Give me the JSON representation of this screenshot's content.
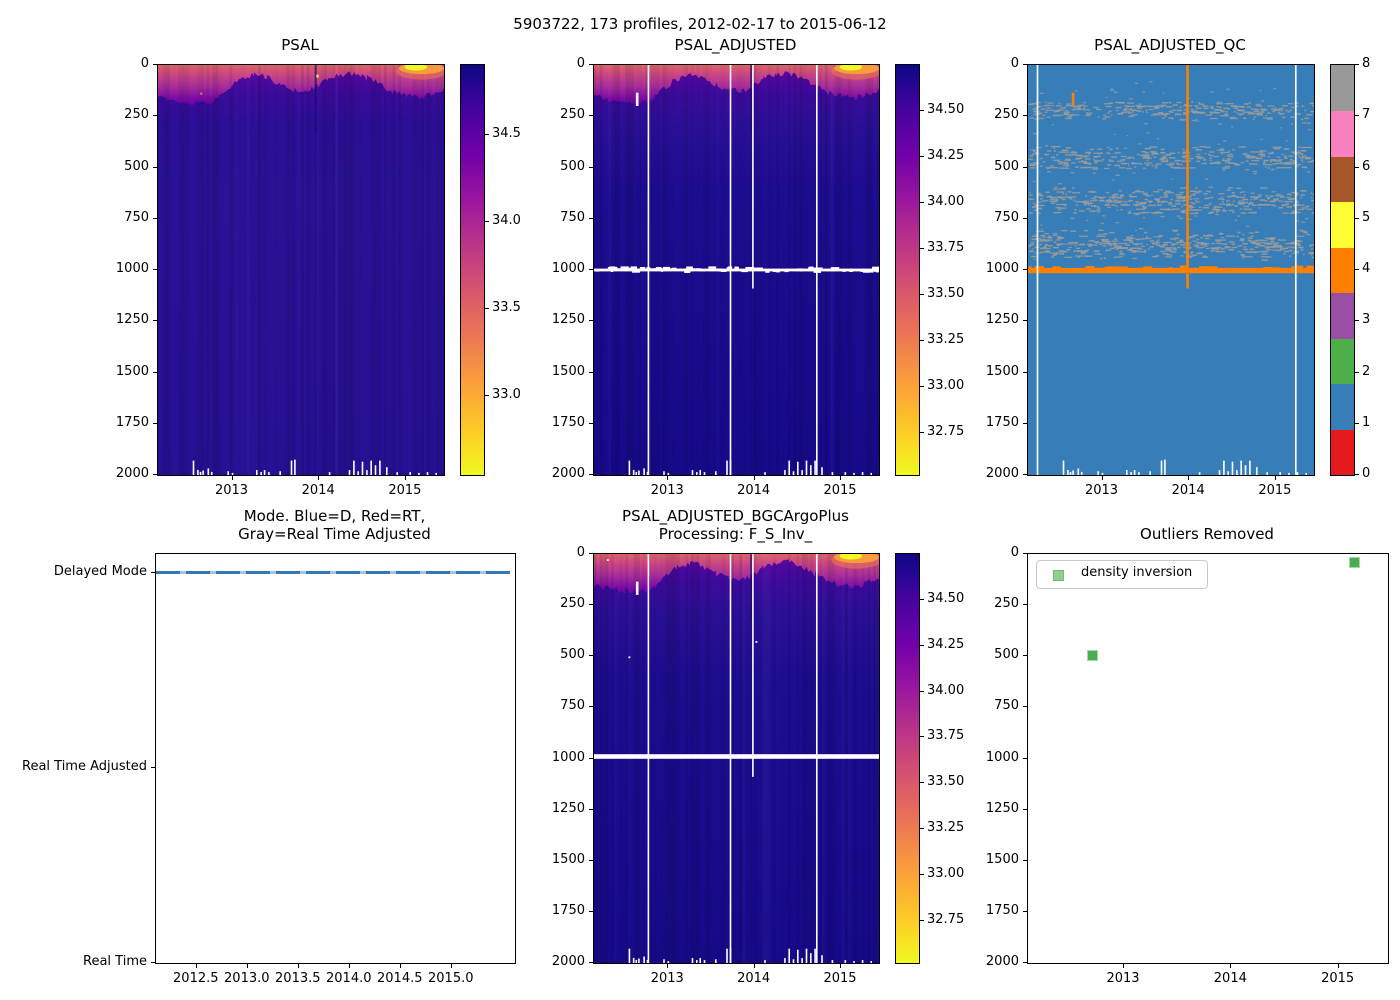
{
  "figure": {
    "title": "5903722, 173 profiles, 2012-02-17 to 2015-06-12",
    "background": "#ffffff"
  },
  "palette": {
    "plasma_reversed_top_to_bottom": [
      "#0d0887",
      "#46039f",
      "#7201a8",
      "#9c179e",
      "#bd3786",
      "#d8576b",
      "#ed7953",
      "#fb9f3a",
      "#fdca26",
      "#f0f921"
    ],
    "qc_category_colors_0_to_8": [
      "#e41a1c",
      "#377eb8",
      "#4daf4a",
      "#984ea3",
      "#ff7f00",
      "#ffff33",
      "#a65628",
      "#f781bf",
      "#999999"
    ],
    "mode_line_blue": "#3579b1",
    "outlier_green": "#4cad50",
    "legend_marker_green": "#8fcf8f",
    "flag_orange": "#ff7f00",
    "flag_gray": "#9a9a9a",
    "missing_data_white": "#ffffff"
  },
  "shared": {
    "depth_ticks": [
      0,
      250,
      500,
      750,
      1000,
      1250,
      1500,
      1750,
      2000
    ],
    "bottom_gap_marks": [
      [
        2012.55,
        1930
      ],
      [
        2012.6,
        1975
      ],
      [
        2012.63,
        1985
      ],
      [
        2012.66,
        1978
      ],
      [
        2012.72,
        1968
      ],
      [
        2012.76,
        1985
      ],
      [
        2012.95,
        1982
      ],
      [
        2013.0,
        1990
      ],
      [
        2013.28,
        1976
      ],
      [
        2013.33,
        1986
      ],
      [
        2013.37,
        1976
      ],
      [
        2013.42,
        1986
      ],
      [
        2013.55,
        1982
      ],
      [
        2013.68,
        1930
      ],
      [
        2013.72,
        1925
      ],
      [
        2014.12,
        1986
      ],
      [
        2014.35,
        1976
      ],
      [
        2014.4,
        1930
      ],
      [
        2014.45,
        1982
      ],
      [
        2014.5,
        1935
      ],
      [
        2014.55,
        1976
      ],
      [
        2014.6,
        1930
      ],
      [
        2014.65,
        1952
      ],
      [
        2014.7,
        1930
      ],
      [
        2014.78,
        1962
      ],
      [
        2014.9,
        1986
      ],
      [
        2015.05,
        1986
      ],
      [
        2015.15,
        1990
      ],
      [
        2015.25,
        1986
      ],
      [
        2015.35,
        1990
      ]
    ]
  },
  "chart_data": [
    {
      "id": "psal",
      "type": "heatmap",
      "title_lines": [
        "PSAL"
      ],
      "xlim": [
        2012.14,
        2015.44
      ],
      "ylim": [
        0,
        2000
      ],
      "x_ticks": [
        {
          "v": 2013,
          "label": "2013"
        },
        {
          "v": 2014,
          "label": "2014"
        },
        {
          "v": 2015,
          "label": "2015"
        }
      ],
      "y_ticks": [
        0,
        250,
        500,
        750,
        1000,
        1250,
        1500,
        1750,
        2000
      ],
      "colorbar": {
        "style": "gradient",
        "vmin": 32.55,
        "vmax": 34.9,
        "ticks": [
          {
            "v": 34.5,
            "label": "34.5"
          },
          {
            "v": 34.0,
            "label": "34.0"
          },
          {
            "v": 33.5,
            "label": "33.5"
          },
          {
            "v": 33.0,
            "label": "33.0"
          }
        ]
      },
      "features": {
        "surface_bloom": {
          "x0": 2014.92,
          "x1": 2015.44,
          "max_depth": 60
        },
        "yellow_speck": {
          "x": 2013.98,
          "depth": 54
        },
        "orange_speck": {
          "x": 2012.64,
          "depth": 140
        },
        "dark_column_x": 2013.96
      }
    },
    {
      "id": "psal_adjusted",
      "type": "heatmap",
      "title_lines": [
        "PSAL_ADJUSTED"
      ],
      "xlim": [
        2012.14,
        2015.44
      ],
      "ylim": [
        0,
        2000
      ],
      "x_ticks": [
        {
          "v": 2013,
          "label": "2013"
        },
        {
          "v": 2014,
          "label": "2014"
        },
        {
          "v": 2015,
          "label": "2015"
        }
      ],
      "y_ticks": [
        0,
        250,
        500,
        750,
        1000,
        1250,
        1500,
        1750,
        2000
      ],
      "colorbar": {
        "style": "gradient",
        "vmin": 32.52,
        "vmax": 34.75,
        "ticks": [
          {
            "v": 34.5,
            "label": "34.50"
          },
          {
            "v": 34.25,
            "label": "34.25"
          },
          {
            "v": 34.0,
            "label": "34.00"
          },
          {
            "v": 33.75,
            "label": "33.75"
          },
          {
            "v": 33.5,
            "label": "33.50"
          },
          {
            "v": 33.25,
            "label": "33.25"
          },
          {
            "v": 33.0,
            "label": "33.00"
          },
          {
            "v": 32.75,
            "label": "32.75"
          }
        ]
      },
      "features": {
        "surface_bloom": {
          "x0": 2014.92,
          "x1": 2015.44,
          "max_depth": 60
        },
        "white_hline": {
          "depth": 1000,
          "ragged": true
        },
        "white_vlines": [
          {
            "x": 2012.77,
            "d0": 0,
            "d1": 2000
          },
          {
            "x": 2013.72,
            "d0": 0,
            "d1": 2000
          },
          {
            "x": 2013.98,
            "d0": 0,
            "d1": 1090
          },
          {
            "x": 2014.72,
            "d0": 0,
            "d1": 2000
          }
        ],
        "white_dashes": [
          {
            "x": 2012.64,
            "d0": 135,
            "d1": 200
          }
        ],
        "dark_column_x": 2013.96
      }
    },
    {
      "id": "psal_adjusted_qc",
      "type": "qc_heatmap",
      "title_lines": [
        "PSAL_ADJUSTED_QC"
      ],
      "xlim": [
        2012.14,
        2015.44
      ],
      "ylim": [
        0,
        2000
      ],
      "x_ticks": [
        {
          "v": 2013,
          "label": "2013"
        },
        {
          "v": 2014,
          "label": "2014"
        },
        {
          "v": 2015,
          "label": "2015"
        }
      ],
      "y_ticks": [
        0,
        250,
        500,
        750,
        1000,
        1250,
        1500,
        1750,
        2000
      ],
      "colorbar": {
        "style": "segments",
        "vmin": 0,
        "vmax": 8,
        "ticks": [
          {
            "v": 0,
            "label": "0"
          },
          {
            "v": 1,
            "label": "1"
          },
          {
            "v": 2,
            "label": "2"
          },
          {
            "v": 3,
            "label": "3"
          },
          {
            "v": 4,
            "label": "4"
          },
          {
            "v": 5,
            "label": "5"
          },
          {
            "v": 6,
            "label": "6"
          },
          {
            "v": 7,
            "label": "7"
          },
          {
            "v": 8,
            "label": "8"
          }
        ]
      },
      "features": {
        "background_flag": 1,
        "gray_flag": 8,
        "orange_flag": 4,
        "flag_bands_gray": [
          {
            "d0": 170,
            "d1": 270
          },
          {
            "d0": 390,
            "d1": 510
          },
          {
            "d0": 590,
            "d1": 730
          },
          {
            "d0": 800,
            "d1": 950
          }
        ],
        "orange_hline_depth": 1000,
        "orange_vline": {
          "x": 2013.98,
          "d0": 0,
          "d1": 1090
        },
        "orange_dash": {
          "x": 2012.66,
          "d0": 135,
          "d1": 195
        },
        "white_vlines": [
          {
            "x": 2012.25,
            "d0": 0,
            "d1": 2000
          },
          {
            "x": 2015.23,
            "d0": 0,
            "d1": 2000
          }
        ]
      }
    },
    {
      "id": "mode",
      "type": "line",
      "title_lines": [
        "Mode. Blue=D, Red=RT,",
        "Gray=Real Time Adjusted"
      ],
      "xlim": [
        2012.1,
        2015.62
      ],
      "ylim": [
        2.1,
        0
      ],
      "x_ticks": [
        {
          "v": 2012.5,
          "label": "2012.5"
        },
        {
          "v": 2013.0,
          "label": "2013.0"
        },
        {
          "v": 2013.5,
          "label": "2013.5"
        },
        {
          "v": 2014.0,
          "label": "2014.0"
        },
        {
          "v": 2014.5,
          "label": "2014.5"
        },
        {
          "v": 2015.0,
          "label": "2015.0"
        }
      ],
      "y_ticks": [
        {
          "v": 2,
          "label": "Delayed Mode"
        },
        {
          "v": 1,
          "label": "Real Time Adjusted"
        },
        {
          "v": 0,
          "label": "Real Time"
        }
      ],
      "line": {
        "y_value": 2,
        "label": "Delayed Mode"
      }
    },
    {
      "id": "psal_adjusted_bgc",
      "type": "heatmap",
      "title_lines": [
        "PSAL_ADJUSTED_BGCArgoPlus",
        "Processing: F_S_Inv_"
      ],
      "xlim": [
        2012.14,
        2015.44
      ],
      "ylim": [
        0,
        2000
      ],
      "x_ticks": [
        {
          "v": 2013,
          "label": "2013"
        },
        {
          "v": 2014,
          "label": "2014"
        },
        {
          "v": 2015,
          "label": "2015"
        }
      ],
      "y_ticks": [
        0,
        250,
        500,
        750,
        1000,
        1250,
        1500,
        1750,
        2000
      ],
      "colorbar": {
        "style": "gradient",
        "vmin": 32.52,
        "vmax": 34.75,
        "ticks": [
          {
            "v": 34.5,
            "label": "34.50"
          },
          {
            "v": 34.25,
            "label": "34.25"
          },
          {
            "v": 34.0,
            "label": "34.00"
          },
          {
            "v": 33.75,
            "label": "33.75"
          },
          {
            "v": 33.5,
            "label": "33.50"
          },
          {
            "v": 33.25,
            "label": "33.25"
          },
          {
            "v": 33.0,
            "label": "33.00"
          },
          {
            "v": 32.75,
            "label": "32.75"
          }
        ]
      },
      "features": {
        "surface_bloom": {
          "x0": 2014.92,
          "x1": 2015.44,
          "max_depth": 60
        },
        "white_hline": {
          "depth": 990,
          "ragged": false
        },
        "white_vlines": [
          {
            "x": 2012.77,
            "d0": 0,
            "d1": 2000
          },
          {
            "x": 2013.72,
            "d0": 0,
            "d1": 2000
          },
          {
            "x": 2013.98,
            "d0": 0,
            "d1": 1090
          },
          {
            "x": 2014.72,
            "d0": 0,
            "d1": 2000
          }
        ],
        "white_dashes": [
          {
            "x": 2012.64,
            "d0": 135,
            "d1": 200
          }
        ],
        "white_dots": [
          {
            "x": 2014.02,
            "depth": 430
          },
          {
            "x": 2012.55,
            "depth": 505
          },
          {
            "x": 2012.3,
            "depth": 30
          }
        ],
        "dark_column_x": 2013.96
      }
    },
    {
      "id": "outliers",
      "type": "scatter",
      "title_lines": [
        "Outliers Removed"
      ],
      "xlim": [
        2012.105,
        2015.46
      ],
      "ylim": [
        0,
        2000
      ],
      "x_ticks": [
        {
          "v": 2013,
          "label": "2013"
        },
        {
          "v": 2014,
          "label": "2014"
        },
        {
          "v": 2015,
          "label": "2015"
        }
      ],
      "y_ticks": [
        0,
        250,
        500,
        750,
        1000,
        1250,
        1500,
        1750,
        2000
      ],
      "legend": {
        "label": "density inversion"
      },
      "points": [
        {
          "x": 2012.71,
          "depth": 495
        },
        {
          "x": 2015.15,
          "depth": 44
        }
      ]
    }
  ]
}
